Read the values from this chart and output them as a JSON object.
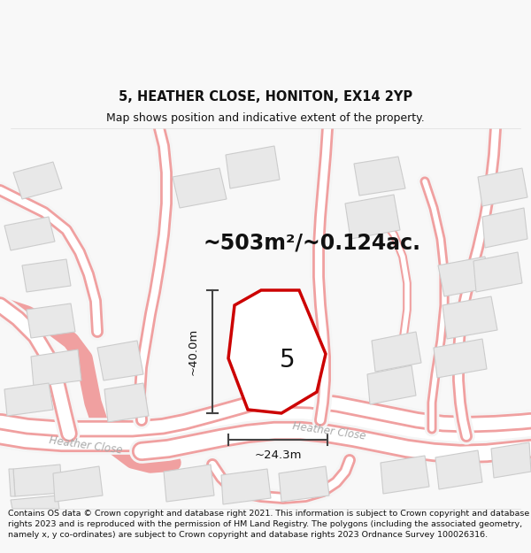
{
  "title": "5, HEATHER CLOSE, HONITON, EX14 2YP",
  "subtitle": "Map shows position and indicative extent of the property.",
  "area_text": "~503m²/~0.124ac.",
  "width_label": "~24.3m",
  "height_label": "~40.0m",
  "plot_number": "5",
  "footer": "Contains OS data © Crown copyright and database right 2021. This information is subject to Crown copyright and database rights 2023 and is reproduced with the permission of HM Land Registry. The polygons (including the associated geometry, namely x, y co-ordinates) are subject to Crown copyright and database rights 2023 Ordnance Survey 100026316.",
  "bg_color": "#f8f8f8",
  "map_bg": "#ffffff",
  "plot_fill": "#ffffff",
  "plot_edge": "#cc0000",
  "road_color": "#f0a0a0",
  "building_fill": "#e8e8e8",
  "building_edge": "#cccccc",
  "road_label_color": "#aaaaaa",
  "dim_color": "#444444",
  "title_color": "#111111",
  "footer_color": "#111111"
}
